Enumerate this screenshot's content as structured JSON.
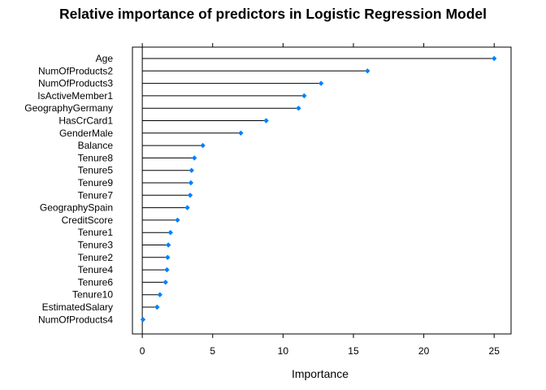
{
  "chart_data": {
    "type": "lollipop",
    "title": "Relative importance of predictors in Logistic Regression Model",
    "xlabel": "Importance",
    "ylabel": "",
    "xlim": [
      -0.7,
      26.2
    ],
    "xticks": [
      0,
      5,
      10,
      15,
      20,
      25
    ],
    "grid": false,
    "colors": {
      "marker": "#0080FF",
      "stem": "#000000",
      "axis": "#000000"
    },
    "categories": [
      "Age",
      "NumOfProducts2",
      "NumOfProducts3",
      "IsActiveMember1",
      "GeographyGermany",
      "HasCrCard1",
      "GenderMale",
      "Balance",
      "Tenure8",
      "Tenure5",
      "Tenure9",
      "Tenure7",
      "GeographySpain",
      "CreditScore",
      "Tenure1",
      "Tenure3",
      "Tenure2",
      "Tenure4",
      "Tenure6",
      "Tenure10",
      "EstimatedSalary",
      "NumOfProducts4"
    ],
    "values": [
      25.0,
      16.0,
      12.7,
      11.5,
      11.1,
      8.8,
      7.0,
      4.3,
      3.7,
      3.5,
      3.45,
      3.4,
      3.2,
      2.5,
      2.0,
      1.85,
      1.8,
      1.75,
      1.65,
      1.25,
      1.05,
      0.05
    ]
  }
}
